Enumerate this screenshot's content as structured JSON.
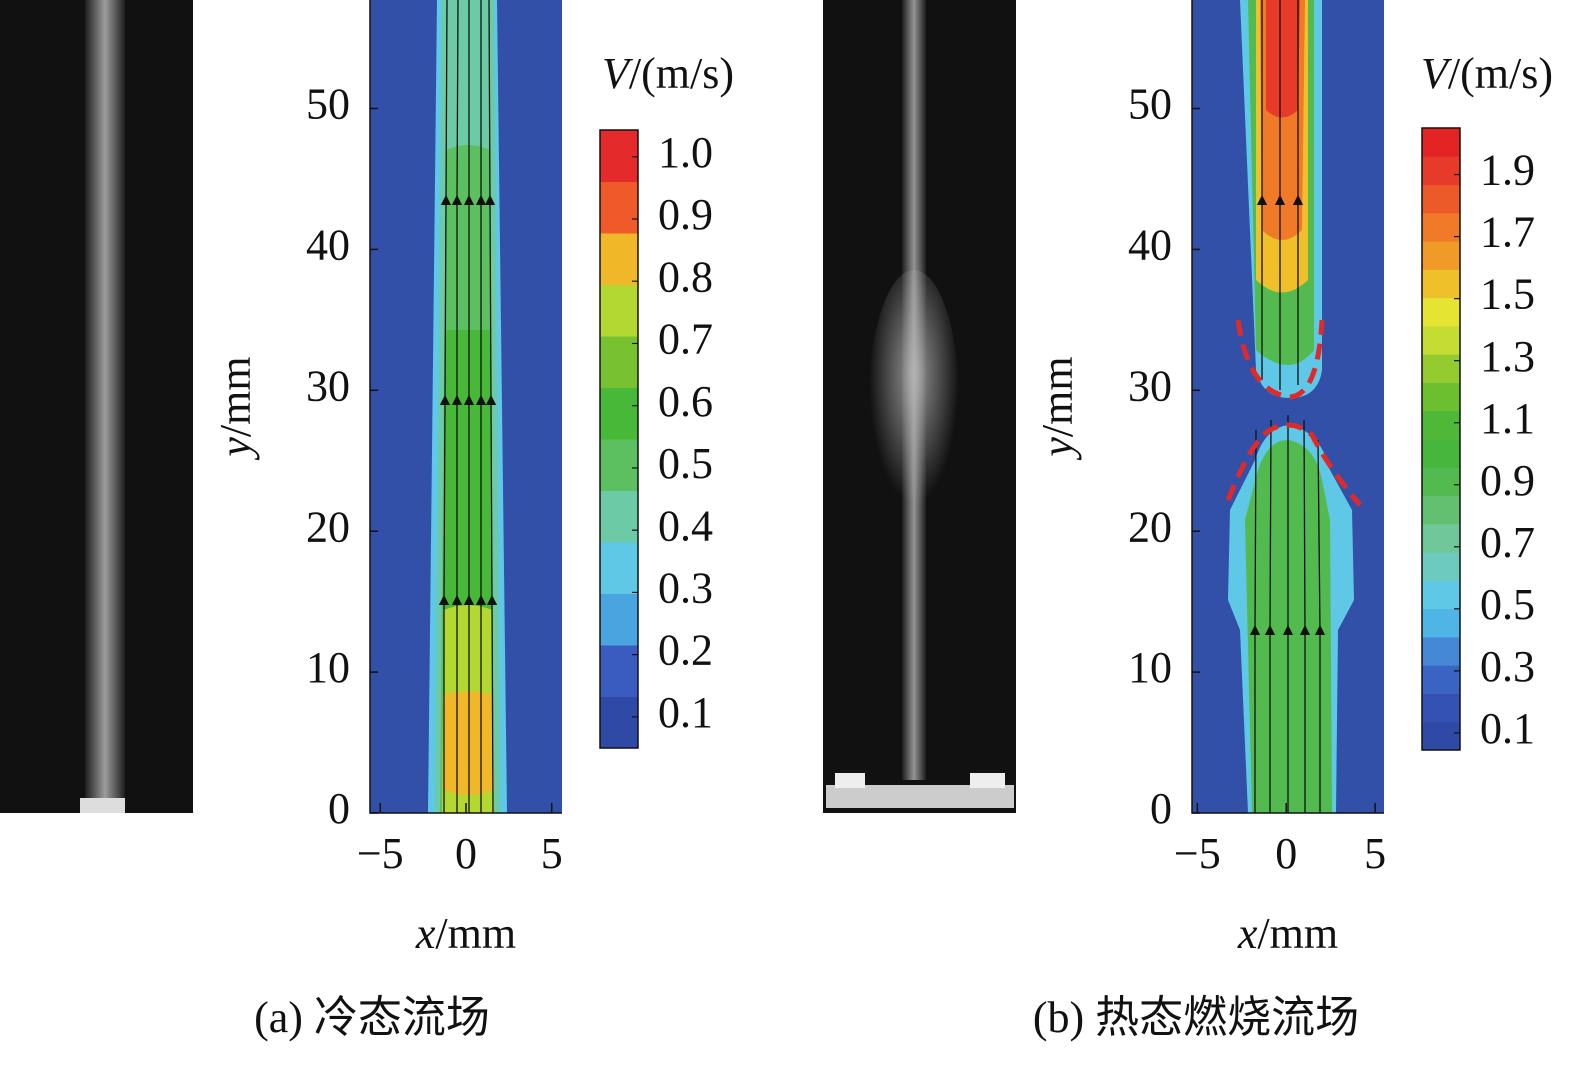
{
  "chart_data": [
    {
      "type": "contour",
      "title": "(a) 冷态流场",
      "xlabel_var": "x",
      "xlabel_unit": "/mm",
      "ylabel_var": "y",
      "ylabel_unit": "/mm",
      "xlim": [
        -5.6,
        5.6
      ],
      "xticks": [
        {
          "value": -5,
          "label": "−5"
        },
        0,
        5
      ],
      "ylim": [
        0,
        57.7
      ],
      "yticks": [
        0,
        10,
        20,
        30,
        40,
        50
      ],
      "colorbar": {
        "title_var": "V",
        "title_unit": "/(m/s)",
        "lim": [
          0.05,
          1.043
        ],
        "ticks": [
          0.1,
          0.2,
          0.3,
          0.4,
          0.5,
          0.6,
          0.7,
          0.8,
          0.9,
          {
            "value": 1,
            "label": "1.0"
          }
        ],
        "colors": [
          "#2f4aa6",
          "#3a5cc0",
          "#4aa4df",
          "#5ec8e6",
          "#6ccaa6",
          "#5cc060",
          "#48b838",
          "#78c232",
          "#b4d832",
          "#f0b828",
          "#f05a2a",
          "#e42a2a"
        ]
      }
    },
    {
      "type": "contour",
      "title": "(b) 热态燃烧流场",
      "xlabel_var": "x",
      "xlabel_unit": "/mm",
      "ylabel_var": "y",
      "ylabel_unit": "/mm",
      "xlim": [
        -5.3,
        5.5
      ],
      "xticks": [
        {
          "value": -5,
          "label": "−5"
        },
        0,
        5
      ],
      "ylim": [
        0,
        57.7
      ],
      "yticks": [
        0,
        10,
        20,
        30,
        40,
        50
      ],
      "colorbar": {
        "title_var": "V",
        "title_unit": "/(m/s)",
        "lim": [
          0.045,
          2.05
        ],
        "ticks": [
          0.1,
          0.3,
          0.5,
          0.7,
          0.9,
          1.1,
          1.3,
          1.5,
          1.7,
          1.9
        ],
        "colors": [
          "#2f4aa6",
          "#3452b4",
          "#3a64c4",
          "#4488d6",
          "#4fb4e6",
          "#5ec8e6",
          "#6ccabe",
          "#70c89a",
          "#62c070",
          "#52ba4e",
          "#46b63c",
          "#50b838",
          "#6cc030",
          "#94cc30",
          "#c4dc34",
          "#e6e432",
          "#f0c02a",
          "#f09a28",
          "#f07a28",
          "#ec5a2a",
          "#e83a2a",
          "#e22424"
        ]
      }
    }
  ]
}
